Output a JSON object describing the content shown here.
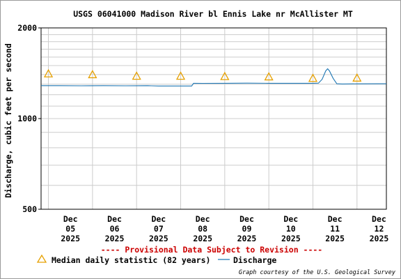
{
  "chart_data": {
    "type": "line",
    "title": "USGS 06041000 Madison River bl Ennis Lake nr McAllister MT",
    "xlabel": "",
    "ylabel": "Discharge, cubic feet per second",
    "y_scale": "log",
    "ylim": [
      500,
      2000
    ],
    "y_ticks": [
      "2000",
      "1000",
      "500"
    ],
    "x_ticks": [
      {
        "label": [
          "Dec",
          "05",
          "2025"
        ],
        "date": "2025-12-05"
      },
      {
        "label": [
          "Dec",
          "06",
          "2025"
        ],
        "date": "2025-12-06"
      },
      {
        "label": [
          "Dec",
          "07",
          "2025"
        ],
        "date": "2025-12-07"
      },
      {
        "label": [
          "Dec",
          "08",
          "2025"
        ],
        "date": "2025-12-08"
      },
      {
        "label": [
          "Dec",
          "09",
          "2025"
        ],
        "date": "2025-12-09"
      },
      {
        "label": [
          "Dec",
          "10",
          "2025"
        ],
        "date": "2025-12-10"
      },
      {
        "label": [
          "Dec",
          "11",
          "2025"
        ],
        "date": "2025-12-11"
      },
      {
        "label": [
          "Dec",
          "12",
          "2025"
        ],
        "date": "2025-12-12"
      }
    ],
    "xlim": [
      "2025-12-04T20:00",
      "2025-12-12T16:00"
    ],
    "grid": true,
    "series": [
      {
        "name": "Discharge",
        "color": "#1f77b4",
        "points": [
          [
            "2025-12-04T20:00",
            1286
          ],
          [
            "2025-12-05T06:00",
            1286
          ],
          [
            "2025-12-05T18:00",
            1285
          ],
          [
            "2025-12-06T06:00",
            1286
          ],
          [
            "2025-12-06T18:00",
            1285
          ],
          [
            "2025-12-07T06:00",
            1286
          ],
          [
            "2025-12-07T08:00",
            1285
          ],
          [
            "2025-12-07T12:00",
            1283
          ],
          [
            "2025-12-08T00:00",
            1283
          ],
          [
            "2025-12-08T06:00",
            1283
          ],
          [
            "2025-12-08T07:00",
            1310
          ],
          [
            "2025-12-08T12:00",
            1309
          ],
          [
            "2025-12-09T00:00",
            1310
          ],
          [
            "2025-12-09T12:00",
            1311
          ],
          [
            "2025-12-10T00:00",
            1310
          ],
          [
            "2025-12-10T12:00",
            1310
          ],
          [
            "2025-12-11T00:00",
            1310
          ],
          [
            "2025-12-11T03:00",
            1311
          ],
          [
            "2025-12-11T05:00",
            1350
          ],
          [
            "2025-12-11T07:00",
            1440
          ],
          [
            "2025-12-11T08:00",
            1463
          ],
          [
            "2025-12-11T09:00",
            1440
          ],
          [
            "2025-12-11T11:00",
            1360
          ],
          [
            "2025-12-11T13:00",
            1305
          ],
          [
            "2025-12-11T16:00",
            1303
          ],
          [
            "2025-12-12T00:00",
            1304
          ],
          [
            "2025-12-12T12:00",
            1305
          ],
          [
            "2025-12-12T16:00",
            1305
          ]
        ]
      },
      {
        "name": "Median daily statistic (82 years)",
        "marker": "triangle",
        "color": "#e6a000",
        "points": [
          [
            "2025-12-05T00:00",
            1405
          ],
          [
            "2025-12-06T00:00",
            1396
          ],
          [
            "2025-12-07T00:00",
            1380
          ],
          [
            "2025-12-08T00:00",
            1380
          ],
          [
            "2025-12-09T00:00",
            1376
          ],
          [
            "2025-12-10T00:00",
            1373
          ],
          [
            "2025-12-11T00:00",
            1357
          ],
          [
            "2025-12-12T00:00",
            1360
          ]
        ]
      }
    ],
    "legend": [
      {
        "symbol": "triangle",
        "label": "Median daily statistic (82 years)"
      },
      {
        "symbol": "line",
        "label": "Discharge"
      }
    ],
    "legend_position": "bottom",
    "annotation": "---- Provisional Data Subject to Revision ----",
    "credit": "Graph courtesy of the U.S. Geological Survey"
  }
}
